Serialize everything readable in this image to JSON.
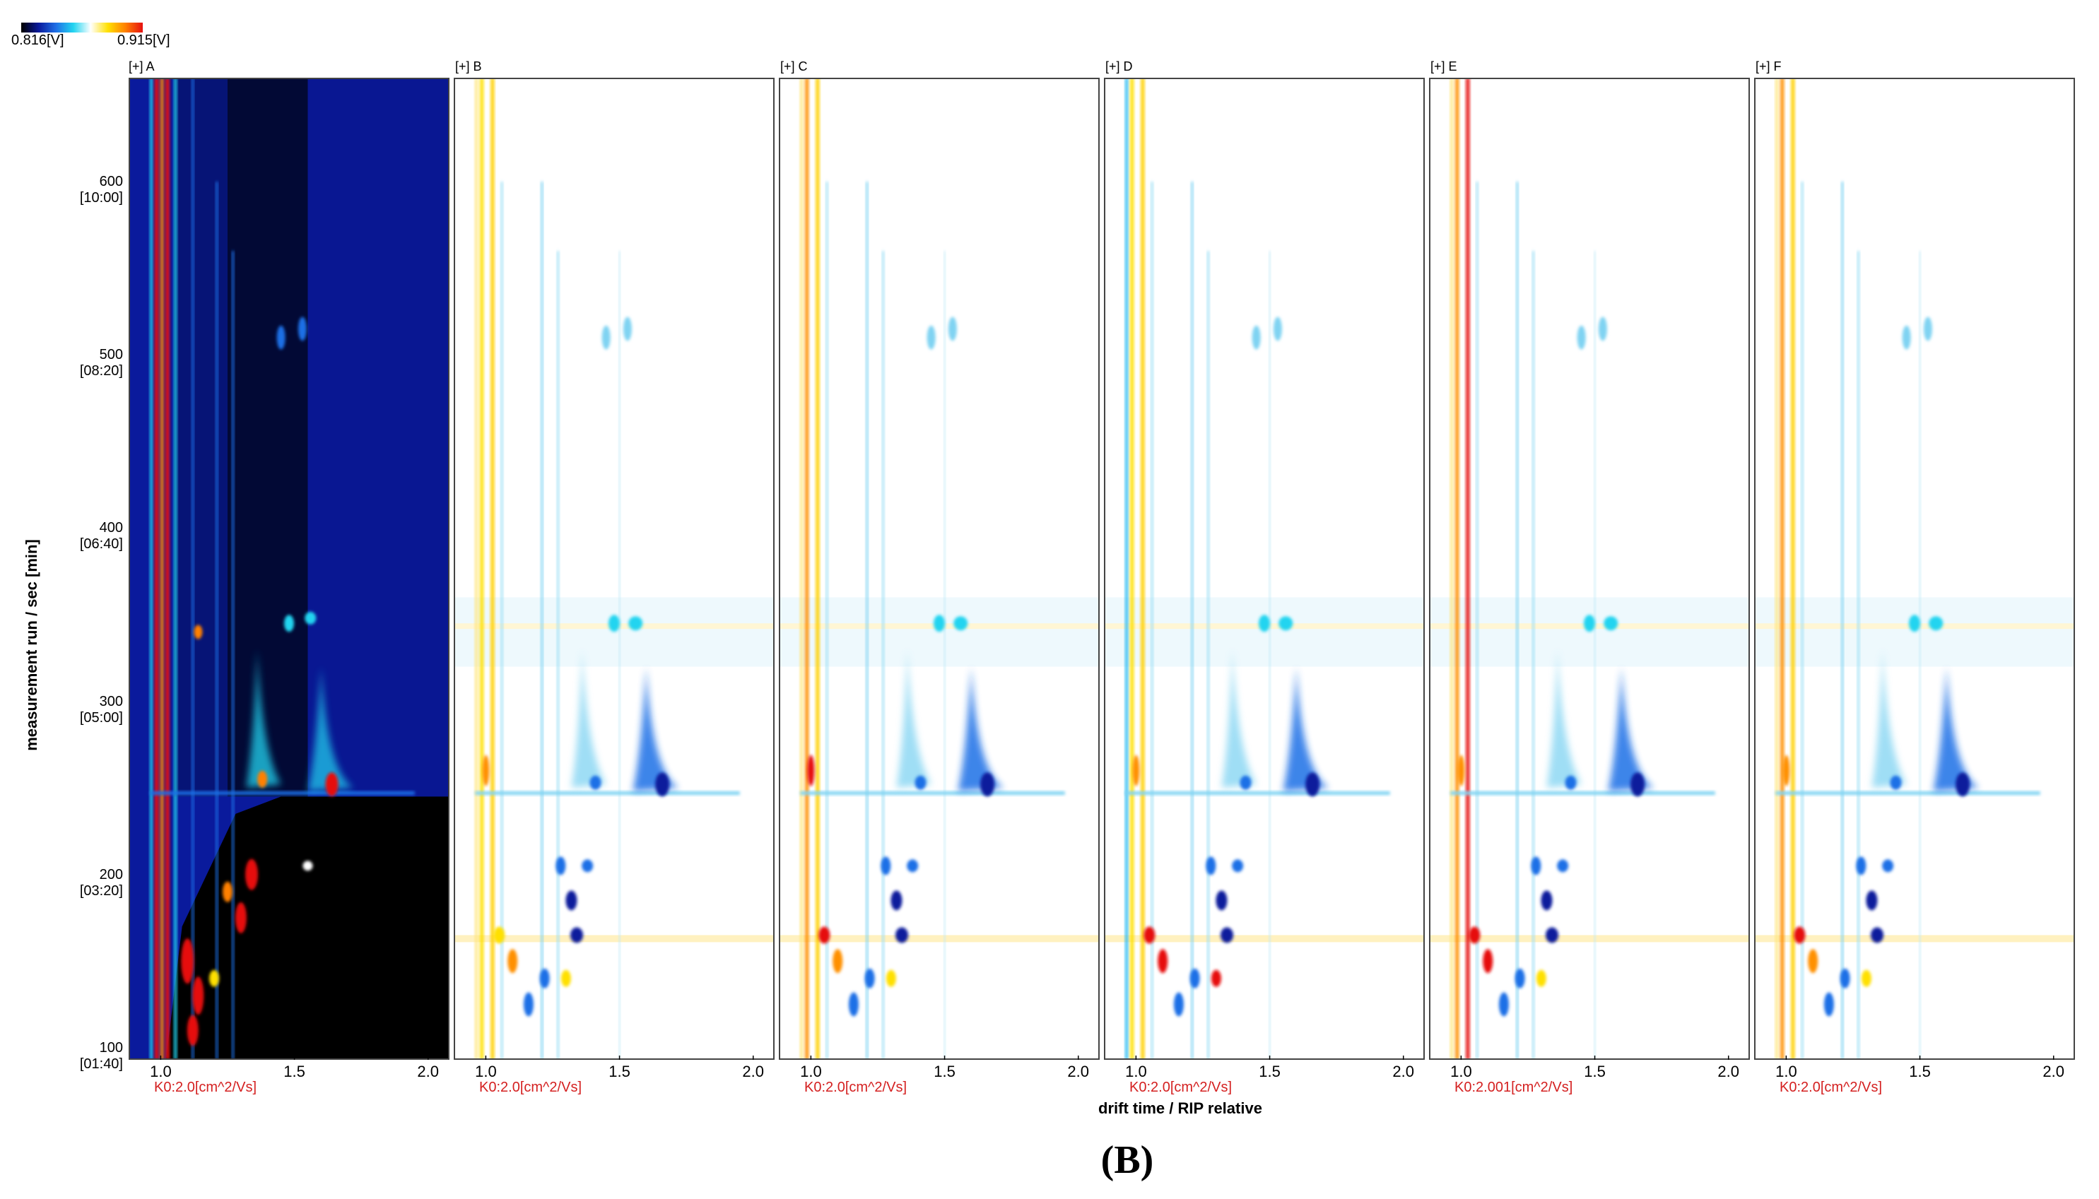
{
  "figure_label": "(B)",
  "colorbar": {
    "min_label": "0.816[V]",
    "max_label": "0.915[V]",
    "stops": [
      "#000000",
      "#0a1a9c",
      "#1f6fe6",
      "#22d4f0",
      "#ffffff",
      "#ffe000",
      "#ff8000",
      "#e61010"
    ]
  },
  "axes": {
    "ylabel": "measurement run / sec [min]",
    "xlabel": "drift time / RIP relative"
  },
  "chart_data": {
    "type": "heatmap",
    "title": "",
    "x_range": [
      0.88,
      2.08
    ],
    "y_range": [
      93,
      660
    ],
    "xticks": [
      "1.0",
      "1.5",
      "2.0"
    ],
    "yticks": [
      {
        "value": 600,
        "label": "600",
        "sub": "[10:00]"
      },
      {
        "value": 500,
        "label": "500",
        "sub": "[08:20]"
      },
      {
        "value": 400,
        "label": "400",
        "sub": "[06:40]"
      },
      {
        "value": 300,
        "label": "300",
        "sub": "[05:00]"
      },
      {
        "value": 200,
        "label": "200",
        "sub": "[03:20]"
      },
      {
        "value": 100,
        "label": "100",
        "sub": "[01:40]"
      }
    ],
    "panels": [
      {
        "label": "[+] A",
        "k0": "K0:2.0[cm^2/Vs]",
        "mode": "reference"
      },
      {
        "label": "[+] B",
        "k0": "K0:2.0[cm^2/Vs]",
        "mode": "difference"
      },
      {
        "label": "[+] C",
        "k0": "K0:2.0[cm^2/Vs]",
        "mode": "difference"
      },
      {
        "label": "[+] D",
        "k0": "K0:2.0[cm^2/Vs]",
        "mode": "difference"
      },
      {
        "label": "[+] E",
        "k0": "K0:2.001[cm^2/Vs]",
        "mode": "difference"
      },
      {
        "label": "[+] F",
        "k0": "K0:2.0[cm^2/Vs]",
        "mode": "difference"
      }
    ]
  }
}
